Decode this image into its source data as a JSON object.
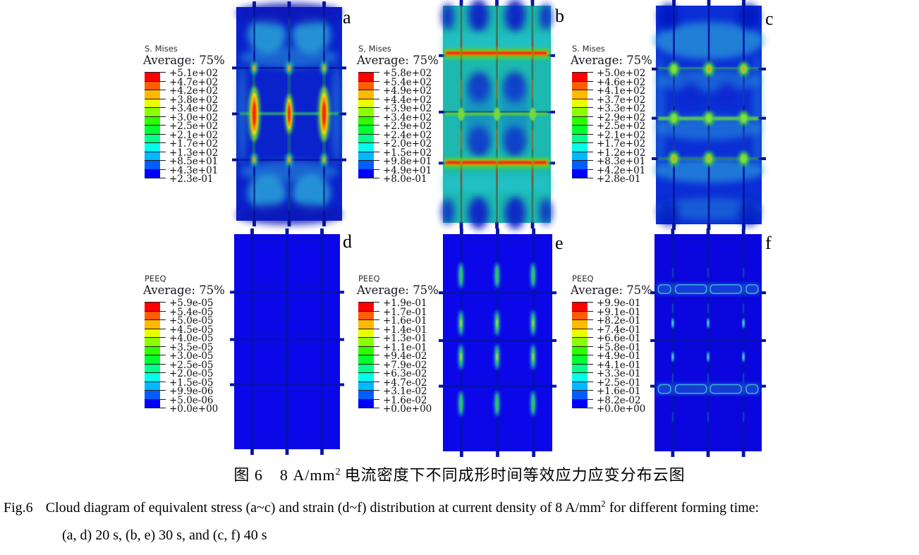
{
  "panels": [
    {
      "label": "a",
      "legend_title": "S. Mises",
      "legend_average": "Average: 75%",
      "legend_values": [
        "+5.1e+02",
        "+4.7e+02",
        "+4.2e+02",
        "+3.8e+02",
        "+3.4e+02",
        "+3.0e+02",
        "+2.5e+02",
        "+2.1e+02",
        "+1.7e+02",
        "+1.3e+02",
        "+8.5e+01",
        "+4.3e+01",
        "+2.3e-01"
      ]
    },
    {
      "label": "b",
      "legend_title": "S, Mises",
      "legend_average": "Average: 75%",
      "legend_values": [
        "+5.8e+02",
        "+5.4e+02",
        "+4.9e+02",
        "+4.4e+02",
        "+3.9e+02",
        "+3.4e+02",
        "+2.9e+02",
        "+2.4e+02",
        "+2.0e+02",
        "+1.5e+02",
        "+9.8e+01",
        "+4.9e+01",
        "+8.0e-01"
      ]
    },
    {
      "label": "c",
      "legend_title": "S. Mises",
      "legend_average": "Average: 75%",
      "legend_values": [
        "+5.0e+02",
        "+4.6e+02",
        "+4.1e+02",
        "+3.7e+02",
        "+3.3e+02",
        "+2.9e+02",
        "+2.5e+02",
        "+2.1e+02",
        "+1.7e+02",
        "+1.2e+02",
        "+8.3e+01",
        "+4.2e+01",
        "+2.8e-01"
      ]
    },
    {
      "label": "d",
      "legend_title": "PEEQ",
      "legend_average": "Average: 75%",
      "legend_values": [
        "+5.9e-05",
        "+5.4e-05",
        "+5.0e-05",
        "+4.5e-05",
        "+4.0e-05",
        "+3.5e-05",
        "+3.0e-05",
        "+2.5e-05",
        "+2.0e-05",
        "+1.5e-05",
        "+9.9e-06",
        "+5.0e-06",
        "+0.0e+00"
      ]
    },
    {
      "label": "e",
      "legend_title": "PEEQ",
      "legend_average": "Average: 75%",
      "legend_values": [
        "+1.9e-01",
        "+1.7e-01",
        "+1.6e-01",
        "+1.4e-01",
        "+1.3e-01",
        "+1.1e-01",
        "+9.4e-02",
        "+7.9e-02",
        "+6.3e-02",
        "+4.7e-02",
        "+3.1e-02",
        "+1.6e-02",
        "+0.0e+00"
      ]
    },
    {
      "label": "f",
      "legend_title": "PEEQ",
      "legend_average": "Average: 75%",
      "legend_values": [
        "+9.9e-01",
        "+9.1e-01",
        "+8.2e-01",
        "+7.4e-01",
        "+6.6e-01",
        "+5.8e-01",
        "+4.9e-01",
        "+4.1e-01",
        "+3.3e-01",
        "+2.5e-01",
        "+1.6e-01",
        "+8.2e-02",
        "+0.0e+00"
      ]
    }
  ],
  "legend_spectrum": [
    "#ff0000",
    "#ff5d00",
    "#ffb900",
    "#e8ff00",
    "#8bff00",
    "#2eff00",
    "#00ff2e",
    "#00ff8b",
    "#00ffe8",
    "#00b9ff",
    "#005dff",
    "#0000ff"
  ],
  "captions": {
    "chinese": {
      "figure_label": "图 6",
      "text_pre": "8 A/mm",
      "superscript": "2",
      "text_post": "电流密度下不同成形时间等效应力应变分布云图"
    },
    "english": {
      "figure_label": "Fig.6",
      "text_pre": "Cloud diagram of equivalent stress (a~c) and strain (d~f) distribution at current density of 8 A/mm",
      "superscript": "2",
      "text_post": " for different forming time:",
      "line2": "(a, d) 20 s, (b, e) 30 s, and (c, f) 40 s"
    }
  }
}
